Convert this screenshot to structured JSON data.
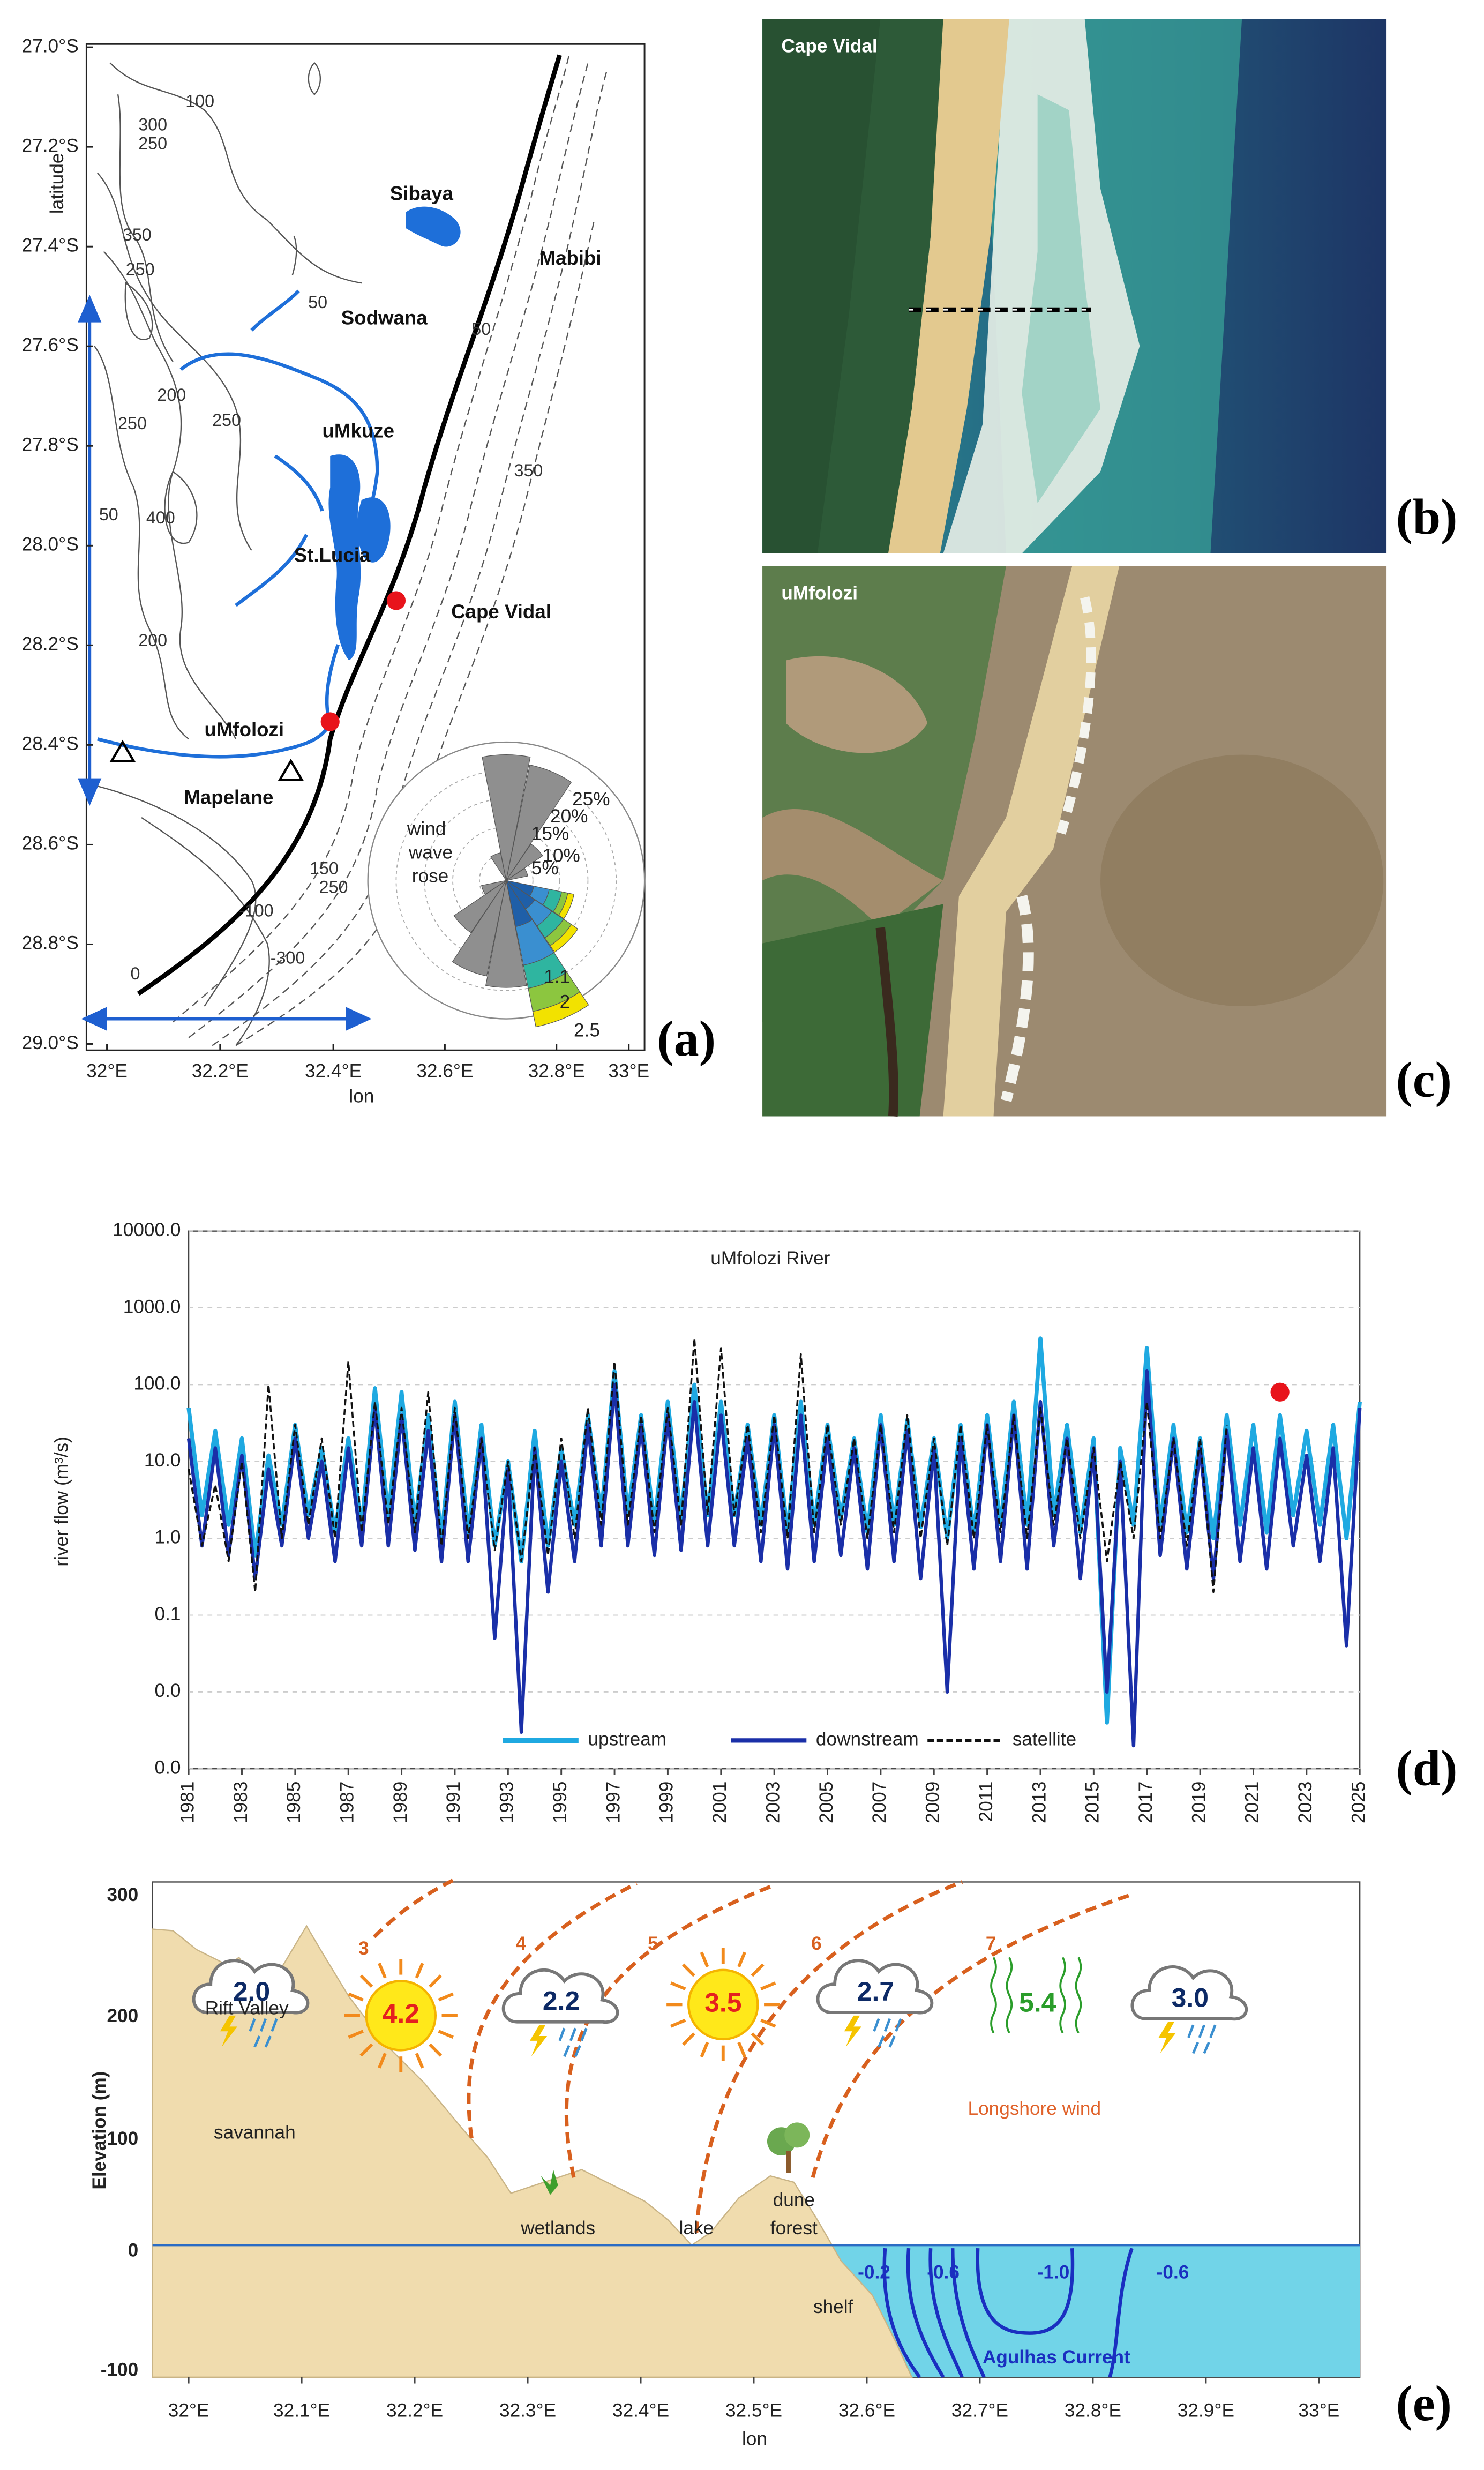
{
  "map": {
    "lat_label": "latitude",
    "lon_label": "lon",
    "lat_ticks": [
      "27.0°S",
      "27.2°S",
      "27.4°S",
      "27.6°S",
      "27.8°S",
      "28.0°S",
      "28.2°S",
      "28.4°S",
      "28.6°S",
      "28.8°S",
      "29.0°S"
    ],
    "lon_ticks": [
      "32°E",
      "32.2°E",
      "32.4°E",
      "32.6°E",
      "32.8°E",
      "33°E"
    ],
    "places": [
      "Sibaya",
      "Mabibi",
      "Sodwana",
      "uMkuze",
      "St.Lucia",
      "Cape Vidal",
      "uMfolozi",
      "Mapelane"
    ],
    "contour_labels": [
      "100",
      "300",
      "250",
      "350",
      "250",
      "50",
      "200",
      "250",
      "250",
      "50",
      "400",
      "200",
      "50",
      "350",
      "150",
      "250",
      "-100",
      "-300",
      "0"
    ],
    "rose_label": [
      "wind",
      "wave",
      "rose"
    ],
    "rose_percents": [
      "25%",
      "20%",
      "15%",
      "10%",
      "5%"
    ],
    "rose_classes": [
      "1.1",
      "2",
      "2.5"
    ],
    "panel": "(a)"
  },
  "photos": [
    {
      "label": "Cape Vidal",
      "panel": "(b)"
    },
    {
      "label": "uMfolozi",
      "panel": "(c)"
    }
  ],
  "chart_data": {
    "type": "line",
    "title": "uMfolozi River",
    "y_label": "river flow (m³/s)",
    "log_y": true,
    "grid": true,
    "legend": "lower center",
    "xlim": [
      1981,
      2025
    ],
    "ylim": [
      0.001,
      10000
    ],
    "yticks": [
      {
        "value": 10000,
        "label": "10000.0"
      },
      {
        "value": 1000,
        "label": "1000.0"
      },
      {
        "value": 100,
        "label": "100.0"
      },
      {
        "value": 10,
        "label": "10.0"
      },
      {
        "value": 1,
        "label": "1.0"
      },
      0.1,
      {
        "value": 0.01,
        "label": "0.0"
      },
      {
        "value": 0.001,
        "label": "0.0"
      }
    ],
    "xticks": [
      1981,
      1983,
      1985,
      1987,
      1989,
      1991,
      1993,
      1995,
      1997,
      1999,
      2001,
      2003,
      2005,
      2007,
      2009,
      2011,
      2013,
      2015,
      2017,
      2019,
      2021,
      2023,
      2025
    ],
    "x": [
      1981,
      1981.5,
      1982,
      1982.5,
      1983,
      1983.5,
      1984,
      1984.5,
      1985,
      1985.5,
      1986,
      1986.5,
      1987,
      1987.5,
      1988,
      1988.5,
      1989,
      1989.5,
      1990,
      1990.5,
      1991,
      1991.5,
      1992,
      1992.5,
      1993,
      1993.5,
      1994,
      1994.5,
      1995,
      1995.5,
      1996,
      1996.5,
      1997,
      1997.5,
      1998,
      1998.5,
      1999,
      1999.5,
      2000,
      2000.5,
      2001,
      2001.5,
      2002,
      2002.5,
      2003,
      2003.5,
      2004,
      2004.5,
      2005,
      2005.5,
      2006,
      2006.5,
      2007,
      2007.5,
      2008,
      2008.5,
      2009,
      2009.5,
      2010,
      2010.5,
      2011,
      2011.5,
      2012,
      2012.5,
      2013,
      2013.5,
      2014,
      2014.5,
      2015,
      2015.5,
      2016,
      2016.5,
      2017,
      2017.5,
      2018,
      2018.5,
      2019,
      2019.5,
      2020,
      2020.5,
      2021,
      2021.5,
      2022,
      2022.5,
      2023,
      2023.5,
      2024,
      2024.5,
      2025
    ],
    "series": [
      {
        "name": "upstream",
        "color": "#1fa9e1",
        "dash": false,
        "width": 2.6,
        "values": [
          50,
          2,
          25,
          1.5,
          20,
          0.6,
          12,
          1.5,
          30,
          2,
          15,
          1.2,
          20,
          1.5,
          90,
          2,
          80,
          1.5,
          40,
          1,
          60,
          1.2,
          30,
          0.8,
          10,
          0.5,
          25,
          0.8,
          15,
          1.5,
          40,
          2,
          150,
          2,
          40,
          1.5,
          60,
          1.8,
          100,
          2,
          60,
          2,
          30,
          1.5,
          40,
          1.2,
          60,
          1.5,
          30,
          1.8,
          20,
          1.2,
          40,
          1.5,
          35,
          1.4,
          20,
          1,
          30,
          1.2,
          40,
          1.5,
          60,
          1.5,
          400,
          2,
          30,
          1.2,
          20,
          0.004,
          15,
          1.5,
          300,
          1.5,
          30,
          1.2,
          20,
          1,
          40,
          1.5,
          30,
          1.2,
          40,
          2,
          25,
          1.5,
          30,
          1,
          60
        ]
      },
      {
        "name": "downstream",
        "color": "#1a2fa8",
        "dash": false,
        "width": 2.2,
        "values": [
          20,
          0.8,
          15,
          0.6,
          12,
          0.3,
          8,
          0.8,
          20,
          1,
          10,
          0.5,
          15,
          0.8,
          50,
          0.8,
          40,
          0.7,
          25,
          0.5,
          40,
          0.5,
          20,
          0.05,
          8,
          0.003,
          15,
          0.2,
          10,
          0.5,
          30,
          0.8,
          100,
          0.8,
          30,
          0.6,
          40,
          0.7,
          60,
          0.8,
          40,
          0.8,
          20,
          0.5,
          30,
          0.4,
          40,
          0.5,
          20,
          0.6,
          15,
          0.4,
          30,
          0.5,
          25,
          0.3,
          15,
          0.01,
          20,
          0.4,
          30,
          0.5,
          40,
          0.4,
          60,
          0.8,
          20,
          0.3,
          15,
          0.01,
          10,
          0.002,
          150,
          0.6,
          20,
          0.4,
          15,
          0.3,
          25,
          0.5,
          15,
          0.4,
          20,
          0.8,
          12,
          0.5,
          15,
          0.04,
          50
        ]
      },
      {
        "name": "satellite",
        "color": "#111111",
        "dash": true,
        "width": 1.2,
        "values": [
          8,
          0.8,
          5,
          0.5,
          10,
          0.2,
          100,
          1,
          30,
          1.5,
          20,
          1,
          200,
          1.2,
          60,
          1.5,
          50,
          1.2,
          80,
          0.8,
          50,
          1,
          20,
          0.7,
          10,
          0.5,
          15,
          0.6,
          20,
          1,
          50,
          1.5,
          200,
          1.5,
          40,
          1.2,
          50,
          1.5,
          400,
          2,
          300,
          2,
          30,
          1.2,
          40,
          1,
          250,
          1.2,
          30,
          1.5,
          20,
          1,
          30,
          1.2,
          40,
          1,
          20,
          0.8,
          30,
          1,
          30,
          1.2,
          40,
          1,
          50,
          1.5,
          20,
          1,
          15,
          0.5,
          10,
          1,
          60,
          1,
          20,
          0.8,
          20,
          0.2,
          30,
          null,
          null,
          null,
          null,
          null,
          null,
          null,
          null,
          null,
          null
        ]
      }
    ],
    "points": [
      {
        "x": 2022,
        "value": 80,
        "color": "#e8141b"
      }
    ],
    "panel": "(d)"
  },
  "cross_section": {
    "y_label": "Elevation (m)",
    "x_label": "lon",
    "y_ticks": [
      "300",
      "200",
      "100",
      "0",
      "-100"
    ],
    "x_ticks": [
      "32°E",
      "32.1°E",
      "32.2°E",
      "32.3°E",
      "32.4°E",
      "32.5°E",
      "32.6°E",
      "32.7°E",
      "32.8°E",
      "32.9°E",
      "33°E"
    ],
    "contour_labels": [
      "3",
      "4",
      "5",
      "6",
      "7"
    ],
    "weather_values": [
      "2.0",
      "4.2",
      "2.2",
      "3.5",
      "2.7",
      "5.4",
      "3.0"
    ],
    "zones": [
      "Rift Valley",
      "savannah",
      "wetlands",
      "lake",
      "dune",
      "forest",
      "shelf",
      "Longshore wind"
    ],
    "current_labels": [
      "-0.2",
      "-0.6",
      "-1.0",
      "-0.6"
    ],
    "current_name": "Agulhas Current",
    "panel": "(e)"
  }
}
